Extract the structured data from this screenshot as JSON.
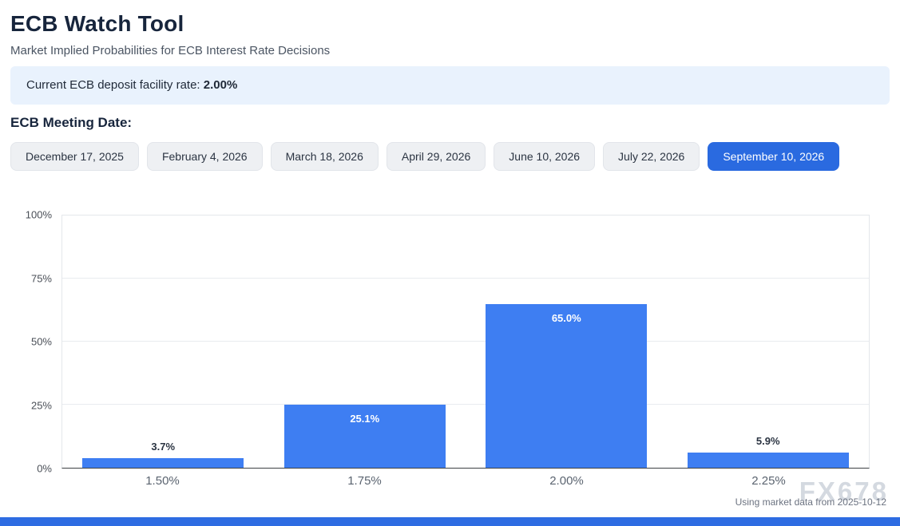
{
  "page": {
    "title": "ECB Watch Tool",
    "subtitle": "Market Implied Probabilities for ECB Interest Rate Decisions"
  },
  "banner": {
    "label": "Current ECB deposit facility rate: ",
    "value": "2.00%"
  },
  "meeting": {
    "label": "ECB Meeting Date:",
    "dates": [
      {
        "label": "December 17, 2025",
        "selected": false
      },
      {
        "label": "February 4, 2026",
        "selected": false
      },
      {
        "label": "March 18, 2026",
        "selected": false
      },
      {
        "label": "April 29, 2026",
        "selected": false
      },
      {
        "label": "June 10, 2026",
        "selected": false
      },
      {
        "label": "July 22, 2026",
        "selected": false
      },
      {
        "label": "September 10, 2026",
        "selected": true
      }
    ]
  },
  "chart_data": {
    "type": "bar",
    "title": "",
    "xlabel": "",
    "ylabel": "",
    "categories": [
      "1.50%",
      "1.75%",
      "2.00%",
      "2.25%"
    ],
    "values": [
      3.7,
      25.1,
      65.0,
      5.9
    ],
    "value_labels": [
      "3.7%",
      "25.1%",
      "65.0%",
      "5.9%"
    ],
    "ylim": [
      0,
      100
    ],
    "yticks": [
      "0%",
      "25%",
      "50%",
      "75%",
      "100%"
    ],
    "grid": true,
    "legend": false,
    "bar_color": "#3e7ef2"
  },
  "footer": {
    "note": "Using market data from 2025-10-12",
    "watermark": "FX678"
  },
  "colors": {
    "accent": "#2a6ae0",
    "banner_bg": "#e9f2fd",
    "bar": "#3e7ef2",
    "bottom_bar": "#2e6ce2"
  }
}
